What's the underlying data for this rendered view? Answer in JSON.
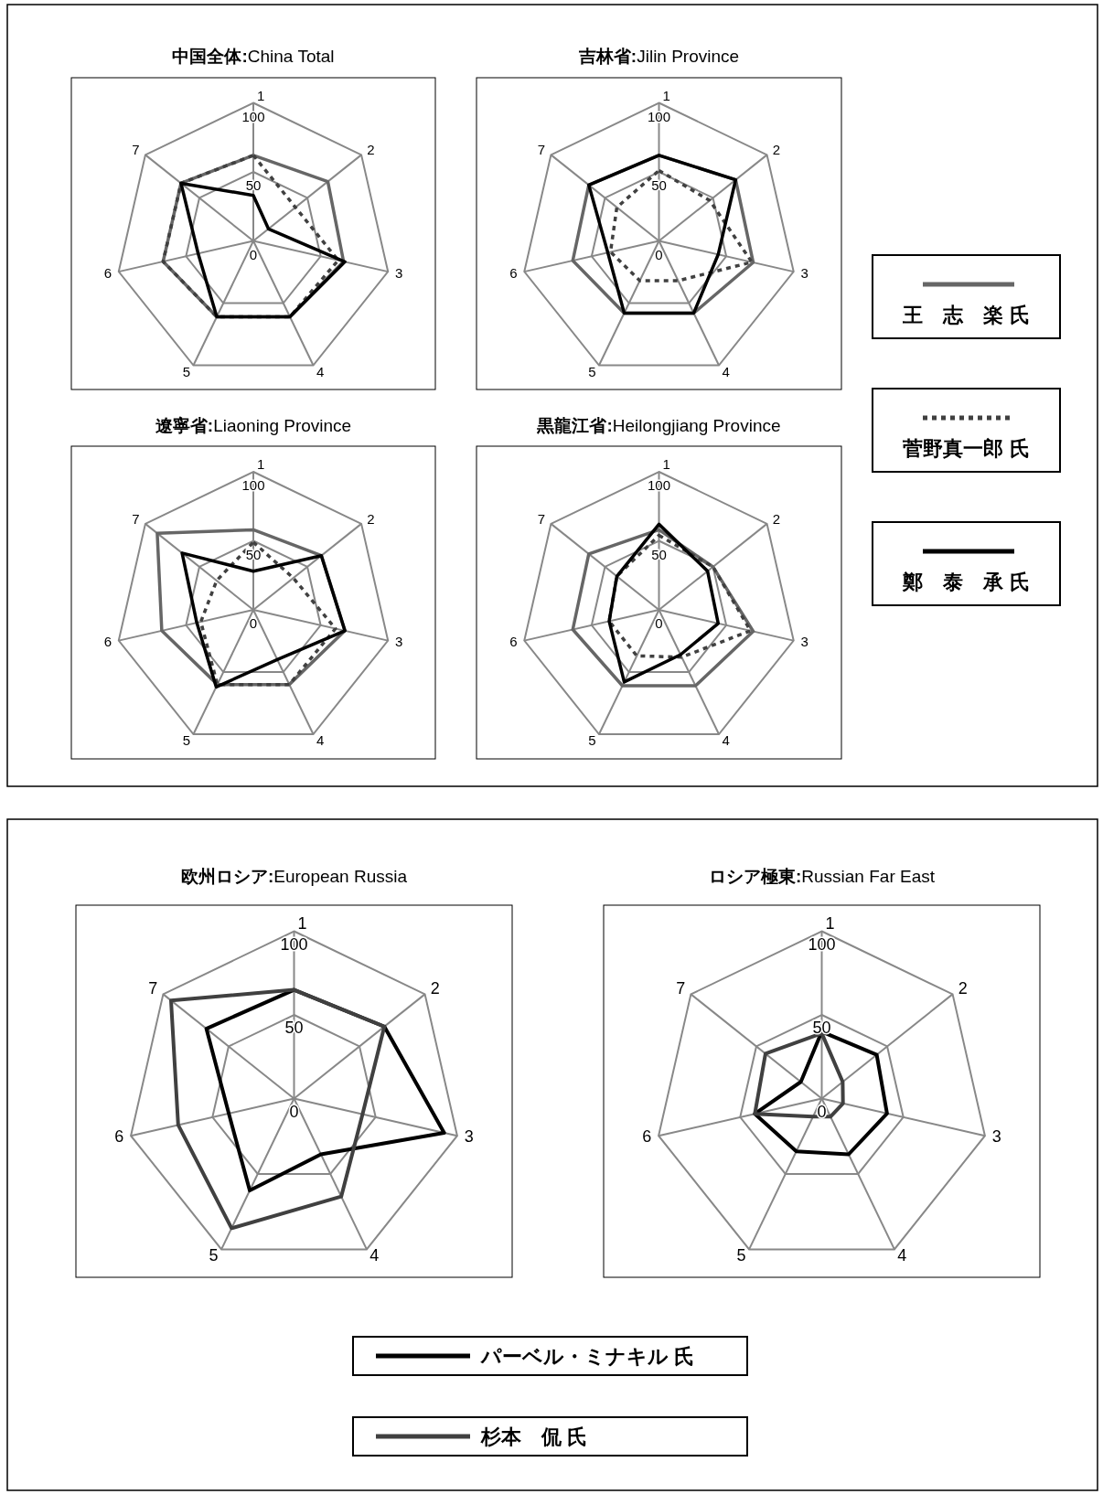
{
  "chart_data": [
    {
      "type": "radar",
      "title": "中国全体:China Total",
      "categories": [
        "1",
        "2",
        "3",
        "4",
        "5",
        "6",
        "7"
      ],
      "ylim": [
        0,
        100
      ],
      "yticks": [
        0,
        50,
        100
      ],
      "grid": true,
      "legend": "right",
      "series": [
        {
          "name": "王　志　楽 氏",
          "color": "#666666",
          "values": [
            62,
            69,
            67,
            61,
            61,
            67,
            67
          ]
        },
        {
          "name": "菅野真一郎 氏",
          "color": "#404040",
          "line_style": "dotted",
          "values": [
            62,
            39,
            63,
            61,
            61,
            67,
            67
          ]
        },
        {
          "name": "鄭　泰　承 氏",
          "color": "#000000",
          "values": [
            33,
            14,
            68,
            61,
            61,
            41,
            67
          ]
        }
      ]
    },
    {
      "type": "radar",
      "title": "吉林省:Jilin Province",
      "categories": [
        "1",
        "2",
        "3",
        "4",
        "5",
        "6",
        "7"
      ],
      "ylim": [
        0,
        100
      ],
      "yticks": [
        0,
        50,
        100
      ],
      "grid": true,
      "series": [
        {
          "color": "#666666",
          "values": [
            62,
            71,
            70,
            58,
            58,
            64,
            65
          ]
        },
        {
          "color": "#404040",
          "line_style": "dotted",
          "values": [
            51,
            47,
            69,
            32,
            32,
            36,
            39
          ]
        },
        {
          "color": "#000000",
          "values": [
            62,
            71,
            44,
            58,
            58,
            38,
            65
          ]
        }
      ]
    },
    {
      "type": "radar",
      "title": "遼寧省:Liaoning Province",
      "categories": [
        "1",
        "2",
        "3",
        "4",
        "5",
        "6",
        "7"
      ],
      "ylim": [
        0,
        100
      ],
      "yticks": [
        0,
        50,
        100
      ],
      "grid": true,
      "series": [
        {
          "color": "#666666",
          "values": [
            58,
            63,
            68,
            60,
            60,
            68,
            89
          ]
        },
        {
          "color": "#404040",
          "line_style": "dotted",
          "values": [
            49,
            37,
            61,
            60,
            60,
            39,
            34
          ]
        },
        {
          "color": "#000000",
          "values": [
            28,
            63,
            68,
            40,
            62,
            42,
            66
          ]
        }
      ]
    },
    {
      "type": "radar",
      "title": "黒龍江省:Heilongjiang Province",
      "categories": [
        "1",
        "2",
        "3",
        "4",
        "5",
        "6",
        "7"
      ],
      "ylim": [
        0,
        100
      ],
      "yticks": [
        0,
        50,
        100
      ],
      "grid": true,
      "series": [
        {
          "color": "#666666",
          "values": [
            58,
            50,
            70,
            61,
            61,
            64,
            65
          ]
        },
        {
          "color": "#404040",
          "line_style": "dotted",
          "values": [
            54,
            50,
            68,
            38,
            37,
            37,
            39
          ]
        },
        {
          "color": "#000000",
          "values": [
            62,
            45,
            44,
            36,
            58,
            37,
            39
          ]
        }
      ]
    },
    {
      "type": "radar",
      "title": "欧州ロシア:European Russia",
      "categories": [
        "1",
        "2",
        "3",
        "4",
        "5",
        "6",
        "7"
      ],
      "ylim": [
        0,
        100
      ],
      "yticks": [
        0,
        50,
        100
      ],
      "grid": true,
      "legend": "bottom",
      "series": [
        {
          "name": "パーベル・ミナキル 氏",
          "color": "#000000",
          "values": [
            65,
            69,
            92,
            37,
            61,
            40,
            67
          ]
        },
        {
          "name": "杉本　侃 氏",
          "color": "#404040",
          "values": [
            65,
            69,
            42,
            65,
            86,
            71,
            94
          ]
        }
      ]
    },
    {
      "type": "radar",
      "title": "ロシア極東:Russian Far East",
      "categories": [
        "1",
        "2",
        "3",
        "4",
        "5",
        "6",
        "7"
      ],
      "ylim": [
        0,
        100
      ],
      "yticks": [
        0,
        50,
        100
      ],
      "grid": true,
      "series": [
        {
          "color": "#000000",
          "values": [
            40,
            42,
            40,
            37,
            35,
            41,
            16
          ]
        },
        {
          "color": "#404040",
          "values": [
            39,
            16,
            13,
            12,
            12,
            41,
            43
          ]
        }
      ]
    }
  ]
}
